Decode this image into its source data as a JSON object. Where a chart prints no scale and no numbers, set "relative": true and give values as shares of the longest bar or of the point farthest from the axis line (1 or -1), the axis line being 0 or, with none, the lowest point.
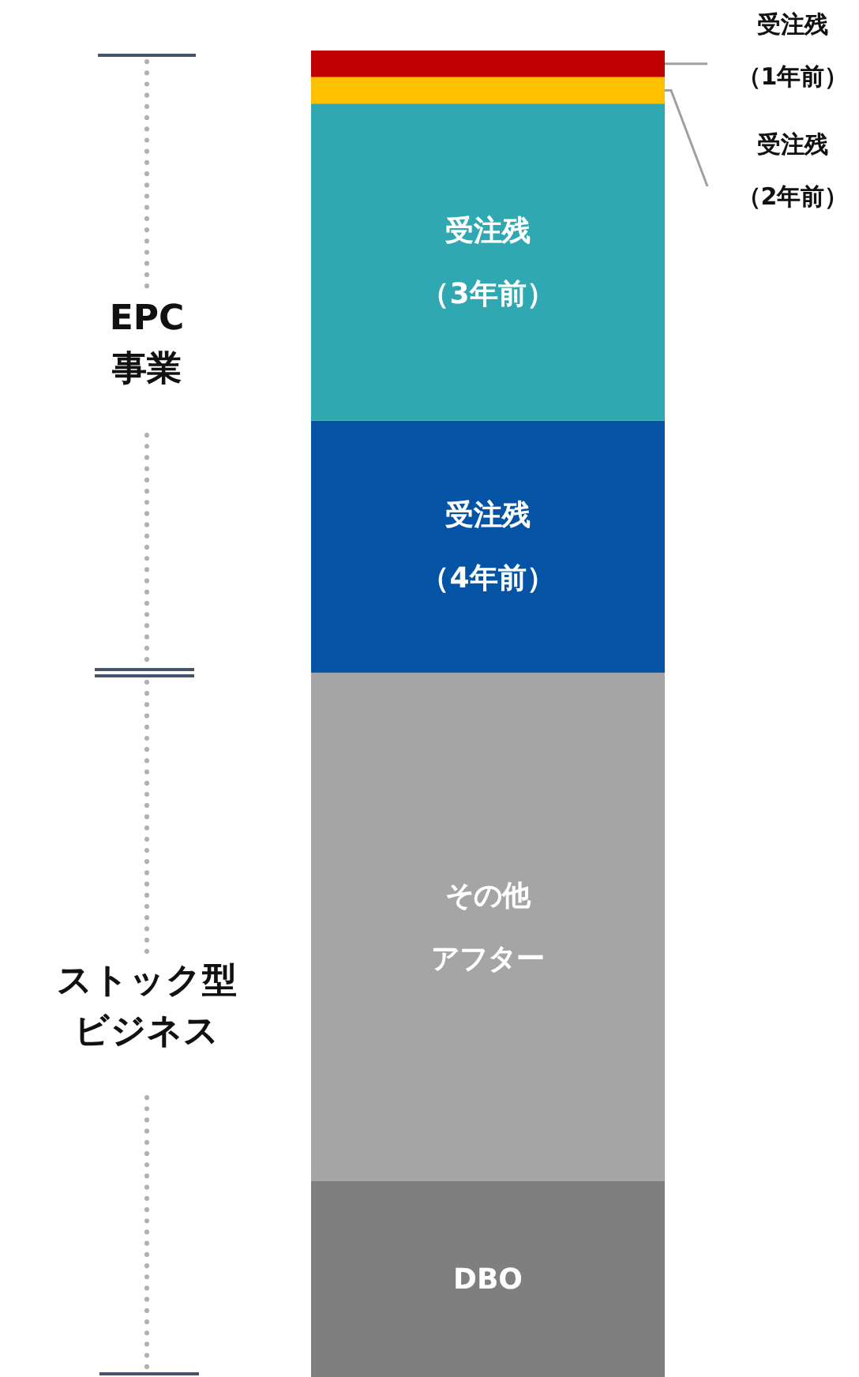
{
  "chart_data": {
    "type": "bar",
    "stacked": true,
    "relative": true,
    "categories": [
      null
    ],
    "series": [
      {
        "name": "DBO",
        "color": "#7f7f7f",
        "values": [
          0.148
        ]
      },
      {
        "name": "その他アフター",
        "color": "#a5a5a5",
        "values": [
          0.383
        ]
      },
      {
        "name": "受注残（4年前）",
        "color": "#0553a5",
        "values": [
          0.19
        ]
      },
      {
        "name": "受注残（3年前）",
        "color": "#30a8b1",
        "values": [
          0.239
        ]
      },
      {
        "name": "受注残（2年前）",
        "color": "#fec000",
        "values": [
          0.02
        ]
      },
      {
        "name": "受注残（1年前）",
        "color": "#c00000",
        "values": [
          0.02
        ]
      }
    ],
    "annotations": [
      "EPC\n事業",
      "ストック型ビジネス"
    ]
  }
}
